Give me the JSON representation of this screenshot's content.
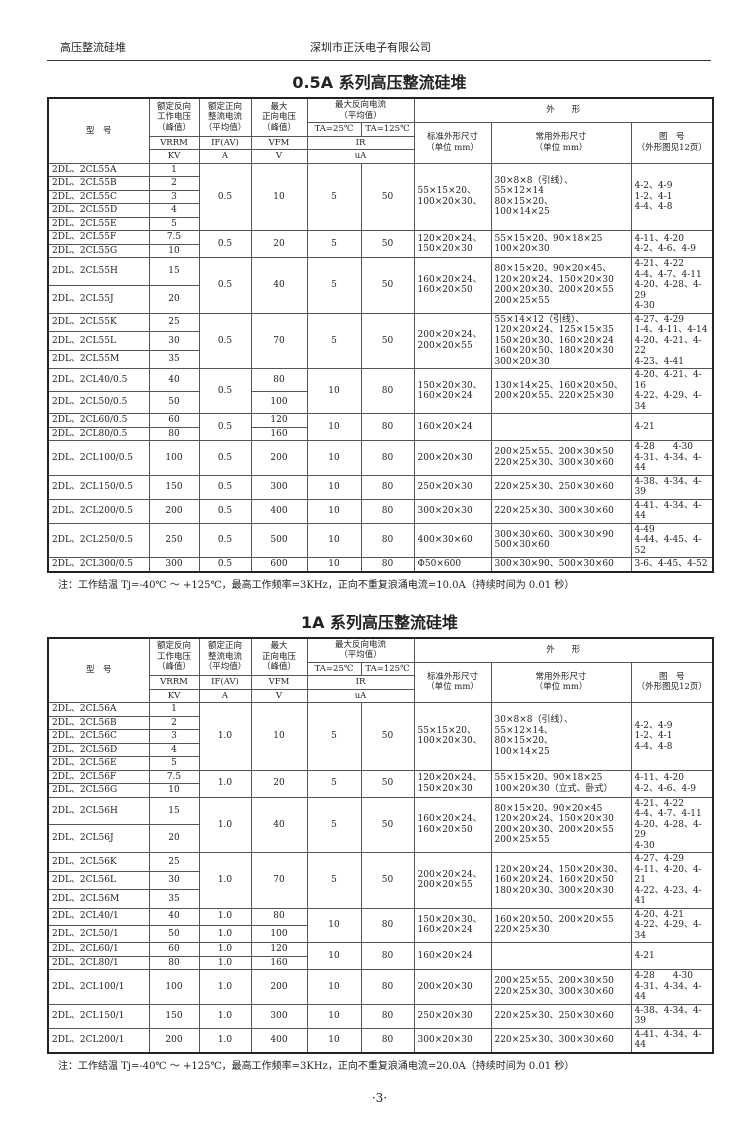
{
  "header": {
    "left": "高压整流硅堆",
    "center": "深圳市正沃电子有限公司"
  },
  "table_header": {
    "model": "型　号",
    "vrrm_desc": "额定反向\n工作电压\n（峰值）",
    "if_desc": "额定正向\n整流电流\n（平均值）",
    "vfm_desc": "最大\n正向电压\n（峰值）",
    "ir_desc": "最大反向电流\n（平均值）",
    "ta25": "TA=25℃",
    "ta125": "TA=125℃",
    "shape": "外　　形",
    "std": "标准外形尺寸\n（单位 mm）",
    "common": "常用外形尺寸\n（单位 mm）",
    "fig": "图　号\n（外形图见12页）",
    "vrrm_sym": "VRRM",
    "if_sym": "IF(AV)",
    "vfm_sym": "VFM",
    "ir_sym": "IR",
    "vrrm_unit": "KV",
    "if_unit": "A",
    "vfm_unit": "V",
    "ir_unit": "uA"
  },
  "tables": [
    {
      "title": "0.5A 系列高压整流硅堆",
      "note": "注：工作结温 Tj=-40℃ ～ +125℃，最高工作频率=3KHz，正向不重复浪涌电流=10.0A（持续时间为 0.01 秒）",
      "groups": [
        {
          "models": [
            "2DL、2CL55A",
            "2DL、2CL55B",
            "2DL、2CL55C",
            "2DL、2CL55D",
            "2DL、2CL55E"
          ],
          "vrrm": [
            "1",
            "2",
            "3",
            "4",
            "5"
          ],
          "if": "0.5",
          "vfm": "10",
          "ir25": "5",
          "ir125": "50",
          "std": "55×15×20、\n100×20×30、",
          "common": "30×8×8（引线）、\n55×12×14\n80×15×20、\n100×14×25",
          "fig": "4-2、4-9\n1-2、4-1\n4-4、4-8"
        },
        {
          "models": [
            "2DL、2CL55F",
            "2DL、2CL55G"
          ],
          "vrrm": [
            "7.5",
            "10"
          ],
          "if": "0.5",
          "vfm": "20",
          "ir25": "5",
          "ir125": "50",
          "std": "120×20×24、\n150×20×30",
          "common": "55×15×20、90×18×25\n100×20×30",
          "fig": "4-11、4-20\n4-2、4-6、4-9"
        },
        {
          "models": [
            "2DL、2CL55H",
            "2DL、2CL55J"
          ],
          "vrrm": [
            "15",
            "20"
          ],
          "if": "0.5",
          "vfm": "40",
          "ir25": "5",
          "ir125": "50",
          "std": "160×20×24、\n160×20×50",
          "common": "80×15×20、90×20×45、\n120×20×24、150×20×30\n200×20×30、200×20×55\n200×25×55",
          "fig": "4-21、4-22\n4-4、4-7、4-11\n4-20、4-28、4-29\n4-30"
        },
        {
          "models": [
            "2DL、2CL55K",
            "2DL、2CL55L",
            "2DL、2CL55M"
          ],
          "vrrm": [
            "25",
            "30",
            "35"
          ],
          "if": "0.5",
          "vfm": "70",
          "ir25": "5",
          "ir125": "50",
          "std": "200×20×24、\n200×20×55",
          "common": "55×14×12（引线）、\n120×20×24、125×15×35\n150×20×30、160×20×24\n160×20×50、180×20×30\n300×20×30",
          "fig": "4-27、4-29\n1-4、4-11、4-14\n4-20、4-21、4-22\n4-23、4-41"
        },
        {
          "models": [
            "2DL、2CL40/0.5",
            "2DL、2CL50/0.5"
          ],
          "vrrm": [
            "40",
            "50"
          ],
          "if": "0.5",
          "vfm": [
            "80",
            "100"
          ],
          "ir25": "10",
          "ir125": "80",
          "std": "150×20×30、\n160×20×24",
          "common": "130×14×25、160×20×50、\n200×20×55、220×25×30",
          "fig": "4-20、4-21、4-16\n4-22、4-29、4-34"
        },
        {
          "models": [
            "2DL、2CL60/0.5",
            "2DL、2CL80/0.5"
          ],
          "vrrm": [
            "60",
            "80"
          ],
          "if": "0.5",
          "vfm": [
            "120",
            "160"
          ],
          "ir25": "10",
          "ir125": "80",
          "std": "160×20×24",
          "common": "",
          "fig": "4-21"
        },
        {
          "models": [
            "2DL、2CL100/0.5"
          ],
          "vrrm": [
            "100"
          ],
          "if": "0.5",
          "vfm": "200",
          "ir25": "10",
          "ir125": "80",
          "std": "200×20×30",
          "common": "200×25×55、200×30×50\n220×25×30、300×30×60",
          "fig": "4-28　　4-30\n4-31、4-34、4-44"
        },
        {
          "models": [
            "2DL、2CL150/0.5"
          ],
          "vrrm": [
            "150"
          ],
          "if": "0.5",
          "vfm": "300",
          "ir25": "10",
          "ir125": "80",
          "std": "250×20×30",
          "common": "220×25×30、250×30×60",
          "fig": "4-38、4-34、4-39"
        },
        {
          "models": [
            "2DL、2CL200/0.5"
          ],
          "vrrm": [
            "200"
          ],
          "if": "0.5",
          "vfm": "400",
          "ir25": "10",
          "ir125": "80",
          "std": "300×20×30",
          "common": "220×25×30、300×30×60",
          "fig": "4-41、4-34、4-44"
        },
        {
          "models": [
            "2DL、2CL250/0.5"
          ],
          "vrrm": [
            "250"
          ],
          "if": "0.5",
          "vfm": "500",
          "ir25": "10",
          "ir125": "80",
          "std": "400×30×60",
          "common": "300×30×60、300×30×90\n500×30×60",
          "fig": "4-49\n4-44、4-45、4-52"
        },
        {
          "models": [
            "2DL、2CL300/0.5"
          ],
          "vrrm": [
            "300"
          ],
          "if": "0.5",
          "vfm": "600",
          "ir25": "10",
          "ir125": "80",
          "std": "Φ50×600",
          "common": "300×30×90、500×30×60",
          "fig": "3-6、4-45、4-52"
        }
      ]
    },
    {
      "title": "1A 系列高压整流硅堆",
      "note": "注：工作结温 Tj=-40℃ ～ +125℃，最高工作频率=3KHz，正向不重复浪涌电流=20.0A（持续时间为 0.01 秒）",
      "groups": [
        {
          "models": [
            "2DL、2CL56A",
            "2DL、2CL56B",
            "2DL、2CL56C",
            "2DL、2CL56D",
            "2DL、2CL56E"
          ],
          "vrrm": [
            "1",
            "2",
            "3",
            "4",
            "5"
          ],
          "if": "1.0",
          "vfm": "10",
          "ir25": "5",
          "ir125": "50",
          "std": "55×15×20、\n100×20×30、",
          "common": "30×8×8（引线）、\n55×12×14、\n80×15×20、\n100×14×25",
          "fig": "4-2、4-9\n1-2、4-1\n4-4、4-8"
        },
        {
          "models": [
            "2DL、2CL56F",
            "2DL、2CL56G"
          ],
          "vrrm": [
            "7.5",
            "10"
          ],
          "if": "1.0",
          "vfm": "20",
          "ir25": "5",
          "ir125": "50",
          "std": "120×20×24、\n150×20×30",
          "common": "55×15×20、90×18×25\n100×20×30（立式、卧式）",
          "fig": "4-11、4-20\n4-2、4-6、4-9"
        },
        {
          "models": [
            "2DL、2CL56H",
            "2DL、2CL56J"
          ],
          "vrrm": [
            "15",
            "20"
          ],
          "if": "1.0",
          "vfm": "40",
          "ir25": "5",
          "ir125": "50",
          "std": "160×20×24、\n160×20×50",
          "common": "80×15×20、90×20×45\n120×20×24、150×20×30\n200×20×30、200×20×55\n200×25×55",
          "fig": "4-21、4-22\n4-4、4-7、4-11\n4-20、4-28、4-29\n4-30"
        },
        {
          "models": [
            "2DL、2CL56K",
            "2DL、2CL56L",
            "2DL、2CL56M"
          ],
          "vrrm": [
            "25",
            "30",
            "35"
          ],
          "if": "1.0",
          "vfm": "70",
          "ir25": "5",
          "ir125": "50",
          "std": "200×20×24、\n200×20×55",
          "common": "120×20×24、150×20×30、\n160×20×24、160×20×50\n180×20×30、300×20×30",
          "fig": "4-27、4-29\n4-11、4-20、4-21\n4-22、4-23、4-41"
        },
        {
          "models": [
            "2DL、2CL40/1",
            "2DL、2CL50/1"
          ],
          "vrrm": [
            "40",
            "50"
          ],
          "if": [
            "1.0",
            "1.0"
          ],
          "vfm": [
            "80",
            "100"
          ],
          "ir25": "10",
          "ir125": "80",
          "std": "150×20×30、\n160×20×24",
          "common": "160×20×50、200×20×55\n220×25×30",
          "fig": "4-20、4-21\n4-22、4-29、4-34"
        },
        {
          "models": [
            "2DL、2CL60/1",
            "2DL、2CL80/1"
          ],
          "vrrm": [
            "60",
            "80"
          ],
          "if": [
            "1.0",
            "1.0"
          ],
          "vfm": [
            "120",
            "160"
          ],
          "ir25": "10",
          "ir125": "80",
          "std": "160×20×24",
          "common": "",
          "fig": "4-21"
        },
        {
          "models": [
            "2DL、2CL100/1"
          ],
          "vrrm": [
            "100"
          ],
          "if": "1.0",
          "vfm": "200",
          "ir25": "10",
          "ir125": "80",
          "std": "200×20×30",
          "common": "200×25×55、200×30×50\n220×25×30、300×30×60",
          "fig": "4-28　　4-30\n4-31、4-34、4-44"
        },
        {
          "models": [
            "2DL、2CL150/1"
          ],
          "vrrm": [
            "150"
          ],
          "if": "1.0",
          "vfm": "300",
          "ir25": "10",
          "ir125": "80",
          "std": "250×20×30",
          "common": "220×25×30、250×30×60",
          "fig": "4-38、4-34、4-39"
        },
        {
          "models": [
            "2DL、2CL200/1"
          ],
          "vrrm": [
            "200"
          ],
          "if": "1.0",
          "vfm": "400",
          "ir25": "10",
          "ir125": "80",
          "std": "300×20×30",
          "common": "220×25×30、300×30×60",
          "fig": "4-41、4-34、4-44"
        }
      ]
    }
  ],
  "page_number": "·3·"
}
